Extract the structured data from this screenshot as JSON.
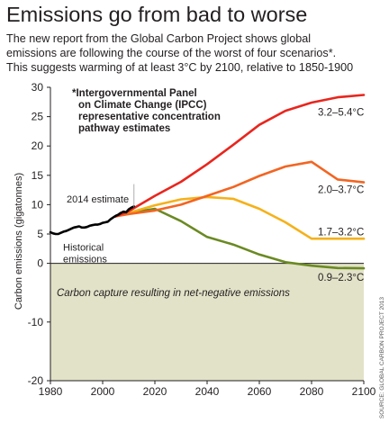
{
  "title": "Emissions go from bad to worse",
  "subtitle_lines": [
    "The new report from the Global Carbon Project shows global",
    "emissions are following the course of the worst of four scenarios*.",
    "This suggests warming of at least 3°C by 2100, relative to 1850-1900"
  ],
  "colors": {
    "rcp85": "#e8261e",
    "rcp60": "#f26522",
    "rcp45": "#f5b119",
    "rcp26": "#6a8a22",
    "historical": "#000000",
    "negative_band": "#e2e2c8"
  },
  "chart_data": {
    "type": "line",
    "ylabel": "Carbon emissions (gigatonnes)",
    "xlabel": "",
    "xlim": [
      1980,
      2100
    ],
    "ylim": [
      -20,
      30
    ],
    "xticks": [
      1980,
      2000,
      2020,
      2040,
      2060,
      2080,
      2100
    ],
    "yticks": [
      -20,
      -10,
      0,
      5,
      10,
      15,
      20,
      25,
      30
    ],
    "grid": false,
    "note": "*Intergovernmental Panel on Climate Change (IPCC) representative concentration pathway estimates",
    "band_label": "Carbon capture resulting in net-negative emissions",
    "source": "SOURCE: GLOBAL CARBON PROJECT 2013",
    "annotations": [
      "2014 estimate"
    ],
    "series": [
      {
        "name": "Historical emissions",
        "color_key": "historical",
        "points": [
          [
            1980,
            5.3
          ],
          [
            1981,
            5.1
          ],
          [
            1982,
            5.0
          ],
          [
            1983,
            5.0
          ],
          [
            1984,
            5.2
          ],
          [
            1985,
            5.4
          ],
          [
            1986,
            5.5
          ],
          [
            1987,
            5.7
          ],
          [
            1988,
            5.9
          ],
          [
            1989,
            6.1
          ],
          [
            1990,
            6.2
          ],
          [
            1991,
            6.3
          ],
          [
            1992,
            6.1
          ],
          [
            1993,
            6.1
          ],
          [
            1994,
            6.2
          ],
          [
            1995,
            6.4
          ],
          [
            1996,
            6.5
          ],
          [
            1997,
            6.6
          ],
          [
            1998,
            6.6
          ],
          [
            1999,
            6.7
          ],
          [
            2000,
            6.9
          ],
          [
            2001,
            7.0
          ],
          [
            2002,
            7.1
          ],
          [
            2003,
            7.5
          ],
          [
            2004,
            7.8
          ],
          [
            2005,
            8.1
          ],
          [
            2006,
            8.3
          ],
          [
            2007,
            8.6
          ],
          [
            2008,
            8.8
          ],
          [
            2009,
            8.7
          ],
          [
            2010,
            9.2
          ],
          [
            2011,
            9.5
          ],
          [
            2012,
            9.7
          ]
        ]
      },
      {
        "name": "3.2–5.4°C",
        "color_key": "rcp85",
        "points": [
          [
            2005,
            8.0
          ],
          [
            2010,
            8.9
          ],
          [
            2020,
            11.5
          ],
          [
            2030,
            13.9
          ],
          [
            2040,
            16.9
          ],
          [
            2050,
            20.2
          ],
          [
            2060,
            23.6
          ],
          [
            2070,
            26.0
          ],
          [
            2080,
            27.4
          ],
          [
            2090,
            28.3
          ],
          [
            2100,
            28.7
          ]
        ]
      },
      {
        "name": "2.0–3.7°C",
        "color_key": "rcp60",
        "points": [
          [
            2005,
            8.0
          ],
          [
            2010,
            8.4
          ],
          [
            2020,
            9.0
          ],
          [
            2030,
            10.0
          ],
          [
            2040,
            11.5
          ],
          [
            2050,
            13.0
          ],
          [
            2060,
            14.9
          ],
          [
            2070,
            16.5
          ],
          [
            2080,
            17.3
          ],
          [
            2090,
            14.3
          ],
          [
            2100,
            13.8
          ]
        ]
      },
      {
        "name": "1.7–3.2°C",
        "color_key": "rcp45",
        "points": [
          [
            2005,
            8.0
          ],
          [
            2010,
            8.6
          ],
          [
            2020,
            9.9
          ],
          [
            2030,
            10.9
          ],
          [
            2040,
            11.3
          ],
          [
            2050,
            11.0
          ],
          [
            2060,
            9.3
          ],
          [
            2070,
            7.0
          ],
          [
            2080,
            4.2
          ],
          [
            2090,
            4.2
          ],
          [
            2100,
            4.2
          ]
        ]
      },
      {
        "name": "0.9–2.3°C",
        "color_key": "rcp26",
        "points": [
          [
            2005,
            8.0
          ],
          [
            2010,
            8.6
          ],
          [
            2020,
            9.3
          ],
          [
            2030,
            7.2
          ],
          [
            2040,
            4.5
          ],
          [
            2050,
            3.2
          ],
          [
            2060,
            1.5
          ],
          [
            2070,
            0.2
          ],
          [
            2080,
            -0.4
          ],
          [
            2090,
            -0.8
          ],
          [
            2100,
            -0.85
          ]
        ]
      }
    ],
    "series_label_lines": {
      "Historical emissions": [
        "Historical",
        "emissions"
      ]
    },
    "note_lines": [
      "*Intergovernmental Panel",
      "on Climate Change (IPCC)",
      "representative concentration",
      "pathway estimates"
    ]
  }
}
